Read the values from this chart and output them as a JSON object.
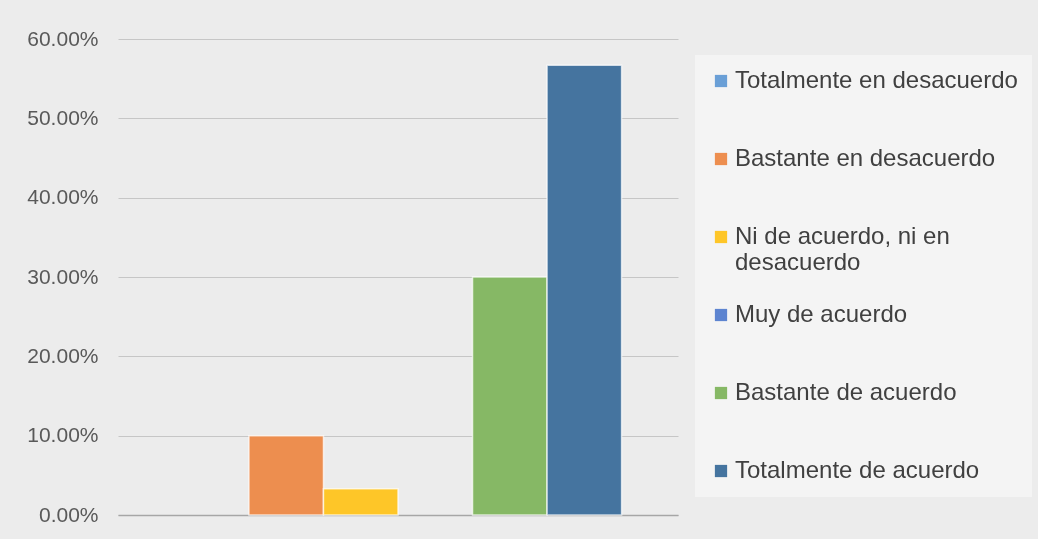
{
  "chart_data": {
    "type": "bar",
    "categories": [
      null
    ],
    "series": [
      {
        "name": "Totalmente en desacuerdo",
        "color": "#6a9fd6",
        "values": [
          0
        ]
      },
      {
        "name": "Bastante en desacuerdo",
        "color": "#ed8e4f",
        "values": [
          10
        ]
      },
      {
        "name": "Ni de acuerdo, ni en desacuerdo",
        "color": "#fec628",
        "values": [
          3.3
        ]
      },
      {
        "name": "Muy de acuerdo",
        "color": "#5d84d0",
        "values": [
          0
        ]
      },
      {
        "name": "Bastante de acuerdo",
        "color": "#86b865",
        "values": [
          30
        ]
      },
      {
        "name": "Totalmente de acuerdo",
        "color": "#45749f",
        "values": [
          56.7
        ]
      }
    ],
    "ylim": [
      0,
      60
    ],
    "yticks": [
      {
        "value": 0,
        "label": "0.00%"
      },
      {
        "value": 10,
        "label": "10.00%"
      },
      {
        "value": 20,
        "label": "20.00%"
      },
      {
        "value": 30,
        "label": "30.00%"
      },
      {
        "value": 40,
        "label": "40.00%"
      },
      {
        "value": 50,
        "label": "50.00%"
      },
      {
        "value": 60,
        "label": "60.00%"
      }
    ],
    "grid": "y",
    "legend": "right"
  }
}
